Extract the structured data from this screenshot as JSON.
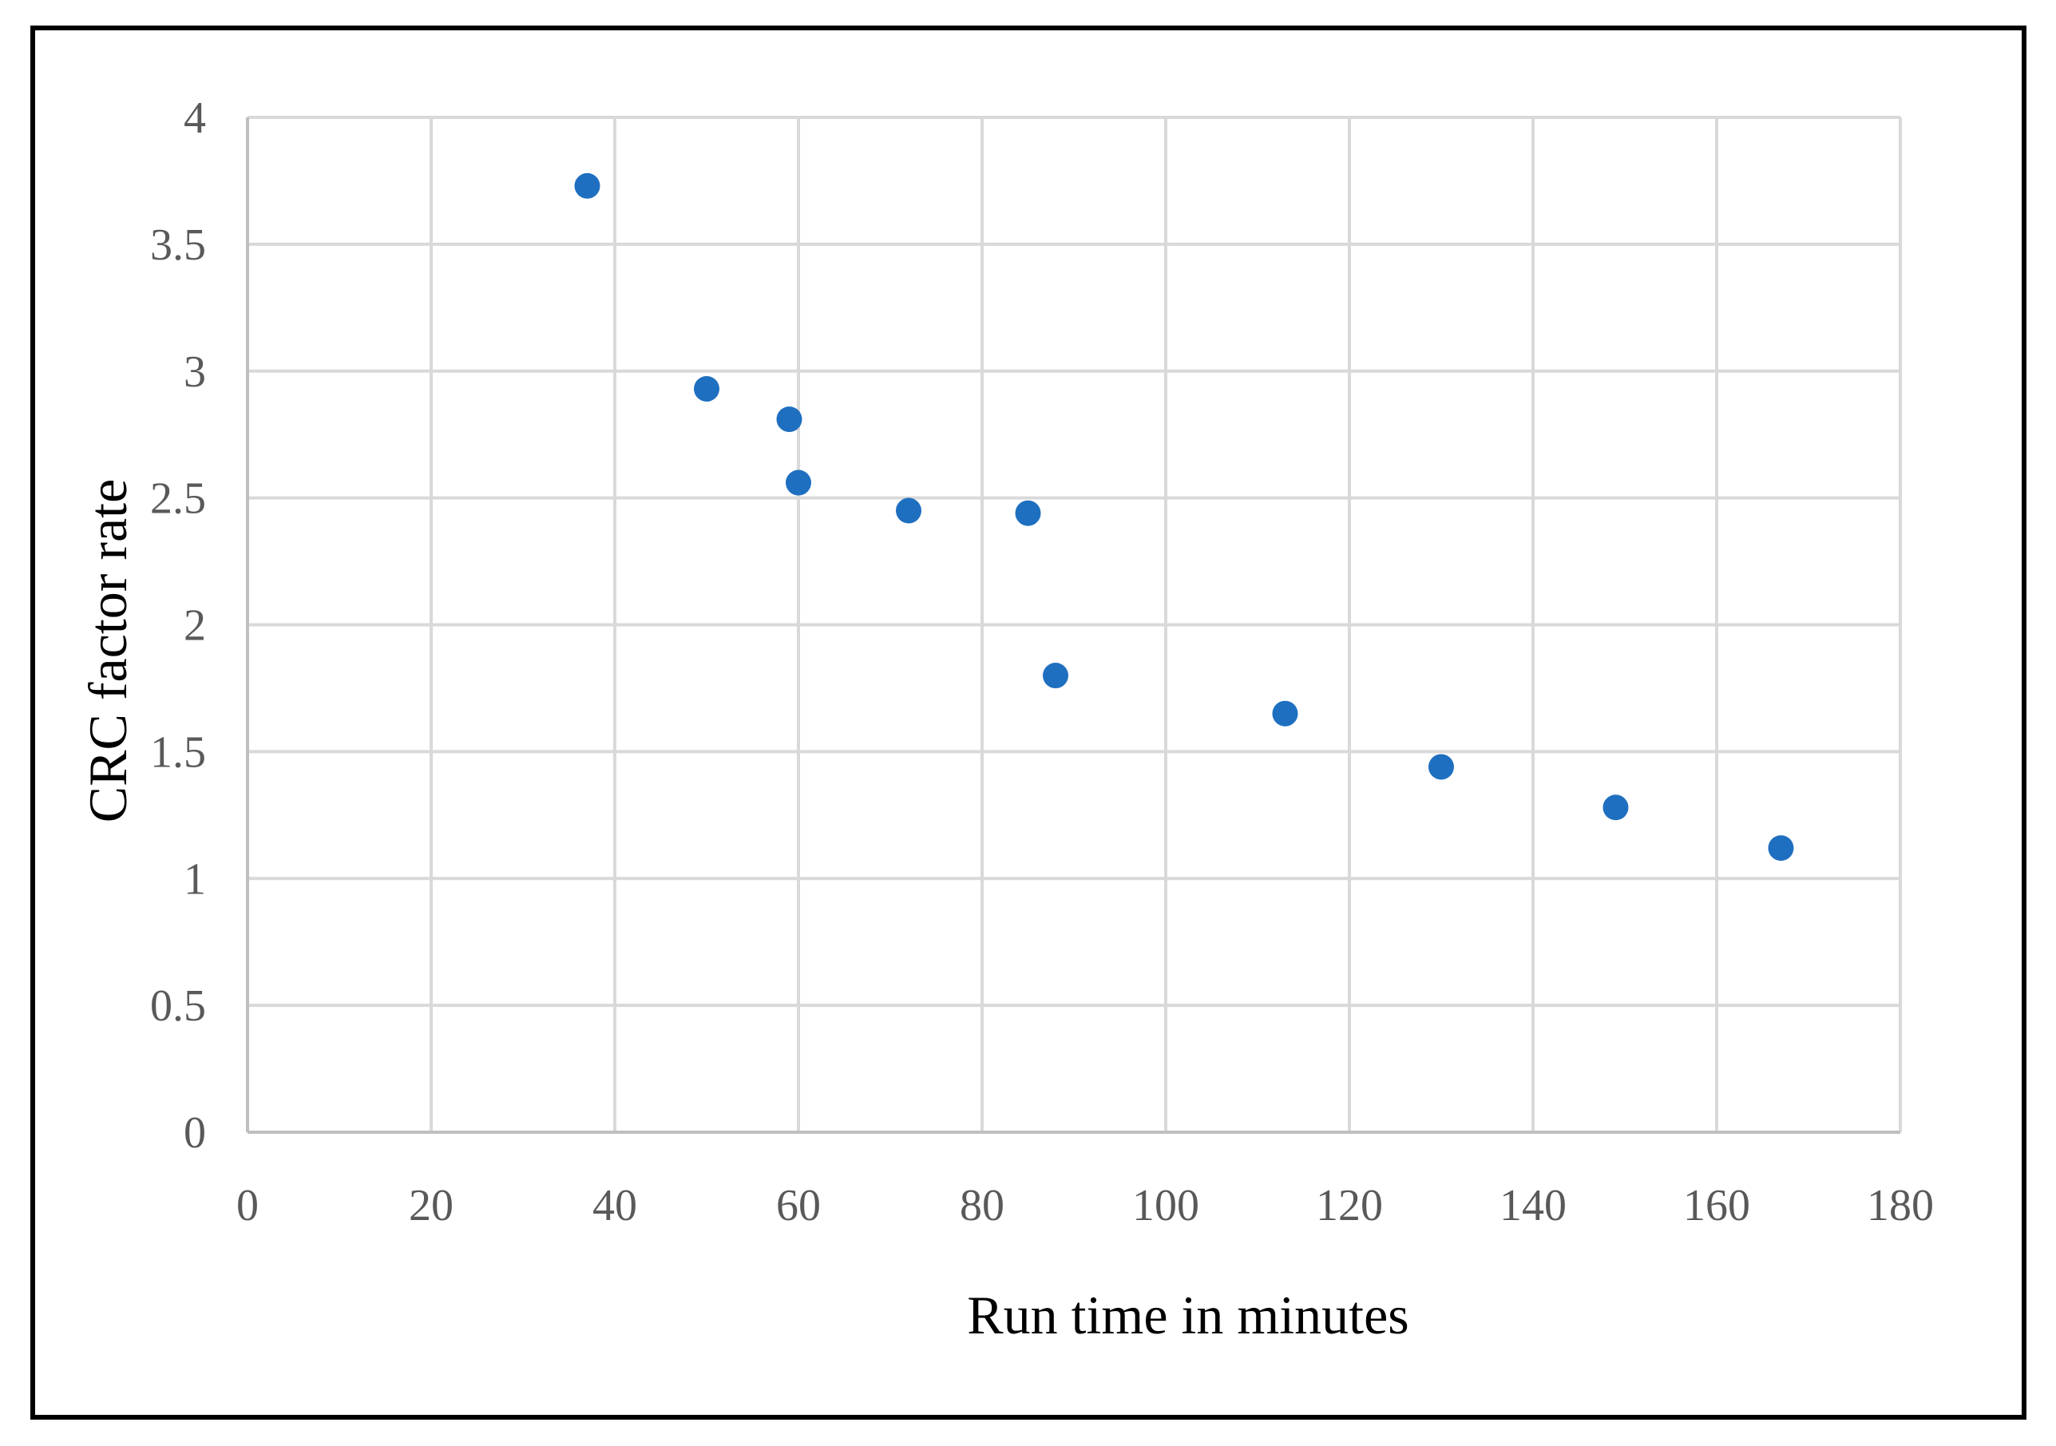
{
  "chart_data": {
    "type": "scatter",
    "xlabel": "Run time in minutes",
    "ylabel": "CRC factor rate",
    "xlim": [
      0,
      180
    ],
    "ylim": [
      0,
      4
    ],
    "x_ticks": [
      "0",
      "20",
      "40",
      "60",
      "80",
      "100",
      "120",
      "140",
      "160",
      "180"
    ],
    "y_ticks": [
      "0",
      "0.5",
      "1",
      "1.5",
      "2",
      "2.5",
      "3",
      "3.5",
      "4"
    ],
    "grid": true,
    "legend": "none",
    "series": [
      {
        "color": "#1f6fc0",
        "points": [
          {
            "x": 37,
            "y": 3.73
          },
          {
            "x": 50,
            "y": 2.93
          },
          {
            "x": 59,
            "y": 2.81
          },
          {
            "x": 60,
            "y": 2.56
          },
          {
            "x": 72,
            "y": 2.45
          },
          {
            "x": 85,
            "y": 2.44
          },
          {
            "x": 88,
            "y": 1.8
          },
          {
            "x": 113,
            "y": 1.65
          },
          {
            "x": 130,
            "y": 1.44
          },
          {
            "x": 149,
            "y": 1.28
          },
          {
            "x": 167,
            "y": 1.12
          }
        ]
      }
    ]
  }
}
